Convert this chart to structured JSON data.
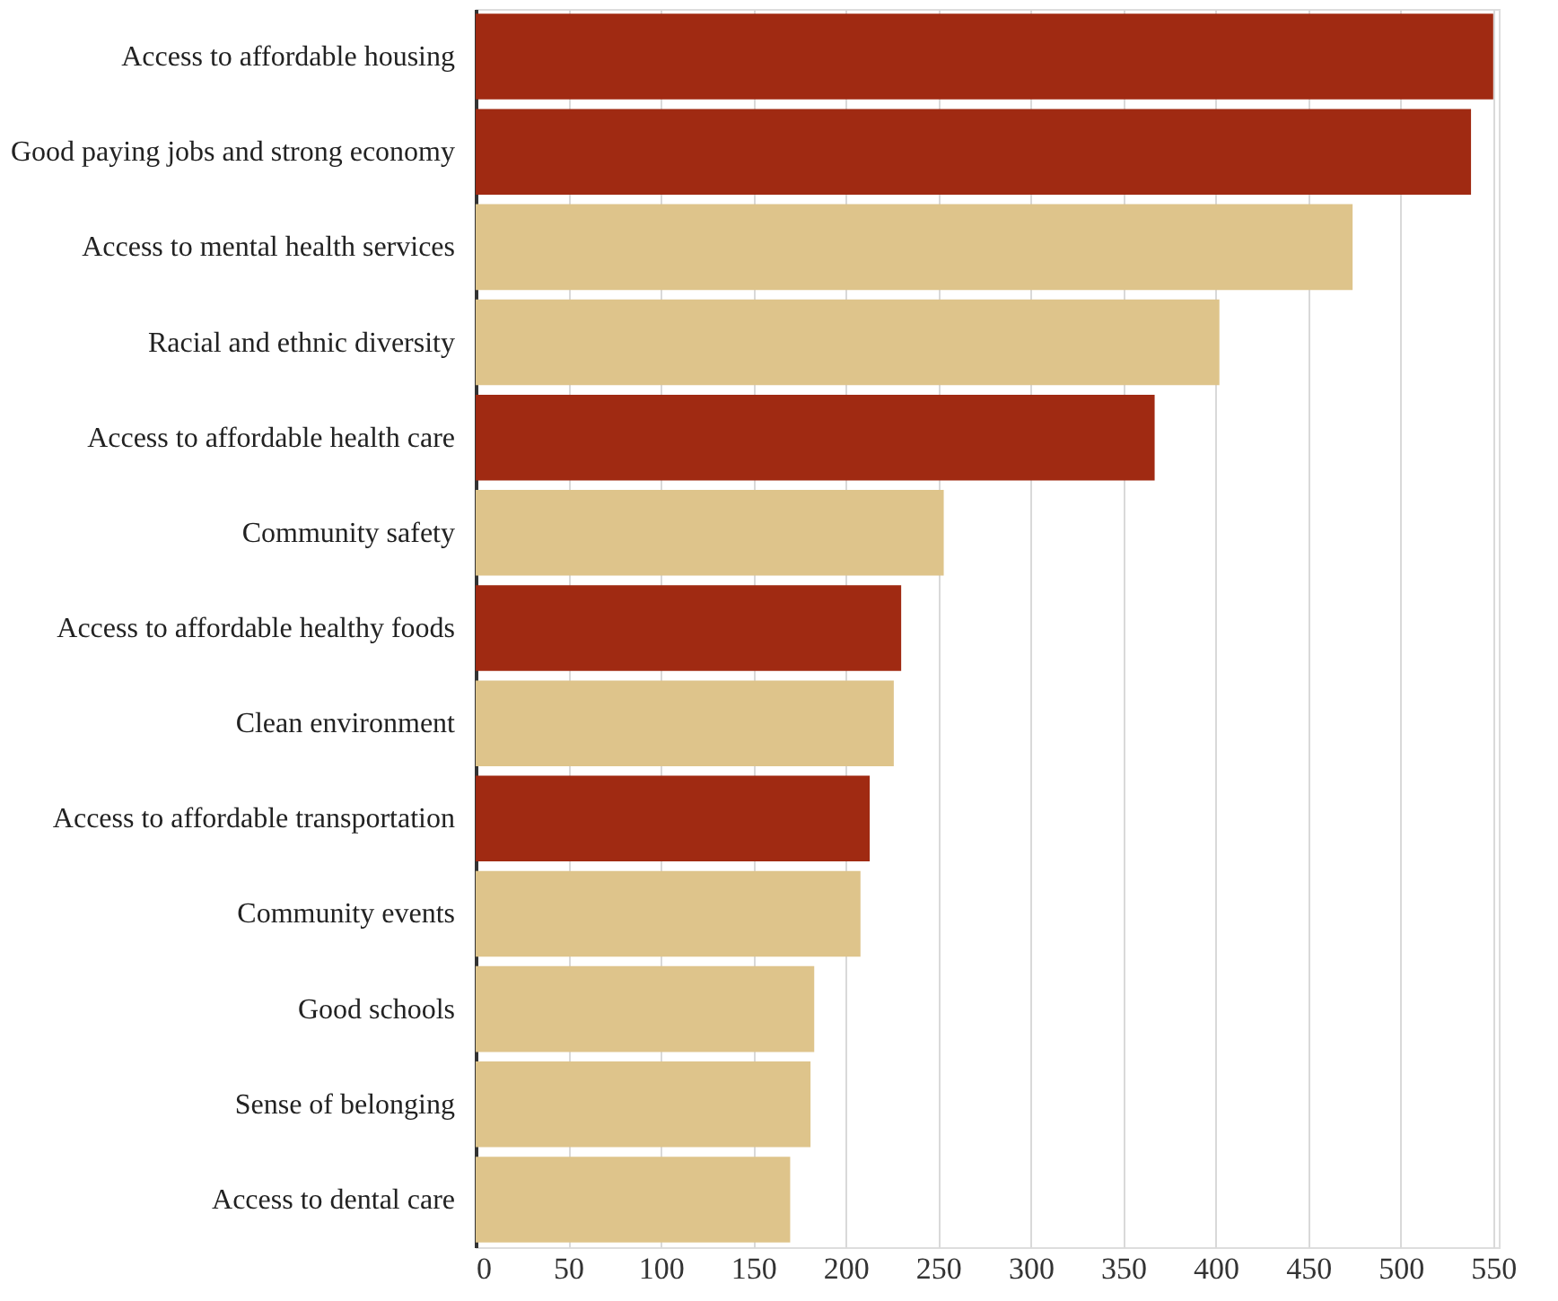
{
  "chart_data": {
    "type": "bar",
    "orientation": "horizontal",
    "categories": [
      "Access to affordable housing",
      "Good paying jobs and strong economy",
      "Access to mental health services",
      "Racial and ethnic diversity",
      "Access to affordable health care",
      "Community safety",
      "Access to affordable healthy foods",
      "Clean environment",
      "Access to affordable transportation",
      "Community events",
      "Good schools",
      "Sense of belonging",
      "Access to dental care"
    ],
    "values": [
      550,
      538,
      474,
      402,
      367,
      253,
      230,
      226,
      213,
      208,
      183,
      181,
      170
    ],
    "colors": [
      "#a02a12",
      "#a02a12",
      "#dec48b",
      "#dec48b",
      "#a02a12",
      "#dec48b",
      "#a02a12",
      "#dec48b",
      "#a02a12",
      "#dec48b",
      "#dec48b",
      "#dec48b",
      "#dec48b"
    ],
    "xlim": [
      0,
      553
    ],
    "xticks": [
      0,
      50,
      100,
      150,
      200,
      250,
      300,
      350,
      400,
      450,
      500,
      550
    ],
    "grid": "x"
  }
}
